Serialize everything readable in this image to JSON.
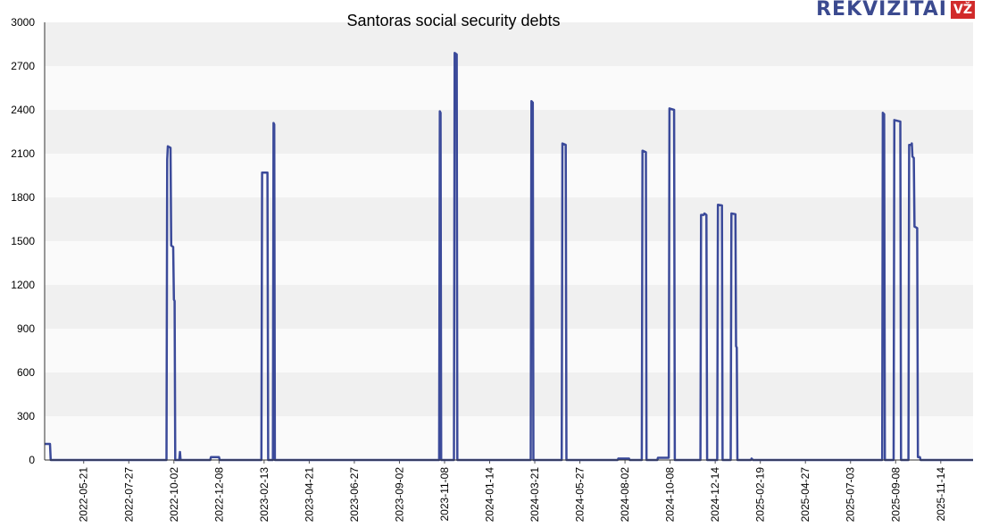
{
  "logo": {
    "text": "REKVIZITAI",
    "badge": "VŽ"
  },
  "chart_data": {
    "type": "line",
    "title": "Santoras social security debts",
    "xlabel": "",
    "ylabel": "",
    "ylim": [
      0,
      3000
    ],
    "yticks": [
      0,
      300,
      600,
      900,
      1200,
      1500,
      1800,
      2100,
      2400,
      2700,
      3000
    ],
    "xrange": [
      "2022-03-24",
      "2026-01-01"
    ],
    "xticks": [
      "2022-05-21",
      "2022-07-27",
      "2022-10-02",
      "2022-12-08",
      "2023-02-13",
      "2023-04-21",
      "2023-06-27",
      "2023-09-02",
      "2023-11-08",
      "2024-01-14",
      "2024-03-21",
      "2024-05-27",
      "2024-08-02",
      "2024-10-08",
      "2024-12-14",
      "2025-02-19",
      "2025-04-27",
      "2025-07-03",
      "2025-09-08",
      "2025-11-14"
    ],
    "grid": "horizontal bands",
    "line_color": "#3b4a9a",
    "series": [
      {
        "values": [
          [
            "2022-03-24",
            110
          ],
          [
            "2022-04-01",
            110
          ],
          [
            "2022-04-02",
            0
          ],
          [
            "2022-09-21",
            0
          ],
          [
            "2022-09-22",
            2060
          ],
          [
            "2022-09-23",
            2150
          ],
          [
            "2022-09-27",
            2140
          ],
          [
            "2022-09-28",
            1470
          ],
          [
            "2022-10-01",
            1460
          ],
          [
            "2022-10-02",
            1100
          ],
          [
            "2022-10-03",
            1090
          ],
          [
            "2022-10-04",
            0
          ],
          [
            "2022-10-10",
            0
          ],
          [
            "2022-10-11",
            55
          ],
          [
            "2022-10-12",
            0
          ],
          [
            "2022-11-25",
            0
          ],
          [
            "2022-11-26",
            20
          ],
          [
            "2022-12-08",
            20
          ],
          [
            "2022-12-09",
            0
          ],
          [
            "2023-02-09",
            0
          ],
          [
            "2023-02-10",
            1970
          ],
          [
            "2023-02-18",
            1970
          ],
          [
            "2023-02-19",
            0
          ],
          [
            "2023-02-26",
            0
          ],
          [
            "2023-02-27",
            2310
          ],
          [
            "2023-02-28",
            2300
          ],
          [
            "2023-03-01",
            0
          ],
          [
            "2023-10-31",
            0
          ],
          [
            "2023-11-01",
            2390
          ],
          [
            "2023-11-02",
            2380
          ],
          [
            "2023-11-03",
            0
          ],
          [
            "2023-11-22",
            0
          ],
          [
            "2023-11-23",
            2790
          ],
          [
            "2023-11-26",
            2780
          ],
          [
            "2023-11-27",
            0
          ],
          [
            "2024-03-15",
            0
          ],
          [
            "2024-03-16",
            2460
          ],
          [
            "2024-03-18",
            2450
          ],
          [
            "2024-03-19",
            0
          ],
          [
            "2024-04-30",
            0
          ],
          [
            "2024-05-01",
            2170
          ],
          [
            "2024-05-06",
            2160
          ],
          [
            "2024-05-07",
            0
          ],
          [
            "2024-07-22",
            0
          ],
          [
            "2024-07-23",
            10
          ],
          [
            "2024-08-08",
            10
          ],
          [
            "2024-08-09",
            0
          ],
          [
            "2024-08-27",
            0
          ],
          [
            "2024-08-28",
            2120
          ],
          [
            "2024-09-02",
            2110
          ],
          [
            "2024-09-03",
            0
          ],
          [
            "2024-09-19",
            0
          ],
          [
            "2024-09-20",
            15
          ],
          [
            "2024-10-06",
            15
          ],
          [
            "2024-10-07",
            2410
          ],
          [
            "2024-10-14",
            2400
          ],
          [
            "2024-10-15",
            0
          ],
          [
            "2024-11-22",
            0
          ],
          [
            "2024-11-23",
            1680
          ],
          [
            "2024-11-27",
            1680
          ],
          [
            "2024-11-28",
            1690
          ],
          [
            "2024-12-01",
            1680
          ],
          [
            "2024-12-02",
            0
          ],
          [
            "2024-12-17",
            0
          ],
          [
            "2024-12-18",
            1750
          ],
          [
            "2024-12-24",
            1745
          ],
          [
            "2024-12-25",
            0
          ],
          [
            "2025-01-06",
            0
          ],
          [
            "2025-01-07",
            1690
          ],
          [
            "2025-01-13",
            1685
          ],
          [
            "2025-01-14",
            780
          ],
          [
            "2025-01-15",
            770
          ],
          [
            "2025-01-16",
            0
          ],
          [
            "2025-02-05",
            0
          ],
          [
            "2025-02-06",
            10
          ],
          [
            "2025-02-08",
            0
          ],
          [
            "2025-08-19",
            0
          ],
          [
            "2025-08-20",
            2380
          ],
          [
            "2025-08-22",
            2370
          ],
          [
            "2025-08-23",
            0
          ],
          [
            "2025-09-05",
            0
          ],
          [
            "2025-09-06",
            2330
          ],
          [
            "2025-09-15",
            2320
          ],
          [
            "2025-09-16",
            0
          ],
          [
            "2025-09-27",
            0
          ],
          [
            "2025-09-28",
            2160
          ],
          [
            "2025-10-01",
            2160
          ],
          [
            "2025-10-02",
            2170
          ],
          [
            "2025-10-03",
            2080
          ],
          [
            "2025-10-05",
            2070
          ],
          [
            "2025-10-06",
            1600
          ],
          [
            "2025-10-10",
            1590
          ],
          [
            "2025-10-11",
            20
          ],
          [
            "2025-10-14",
            20
          ],
          [
            "2025-10-15",
            0
          ],
          [
            "2026-01-01",
            0
          ]
        ]
      }
    ]
  }
}
